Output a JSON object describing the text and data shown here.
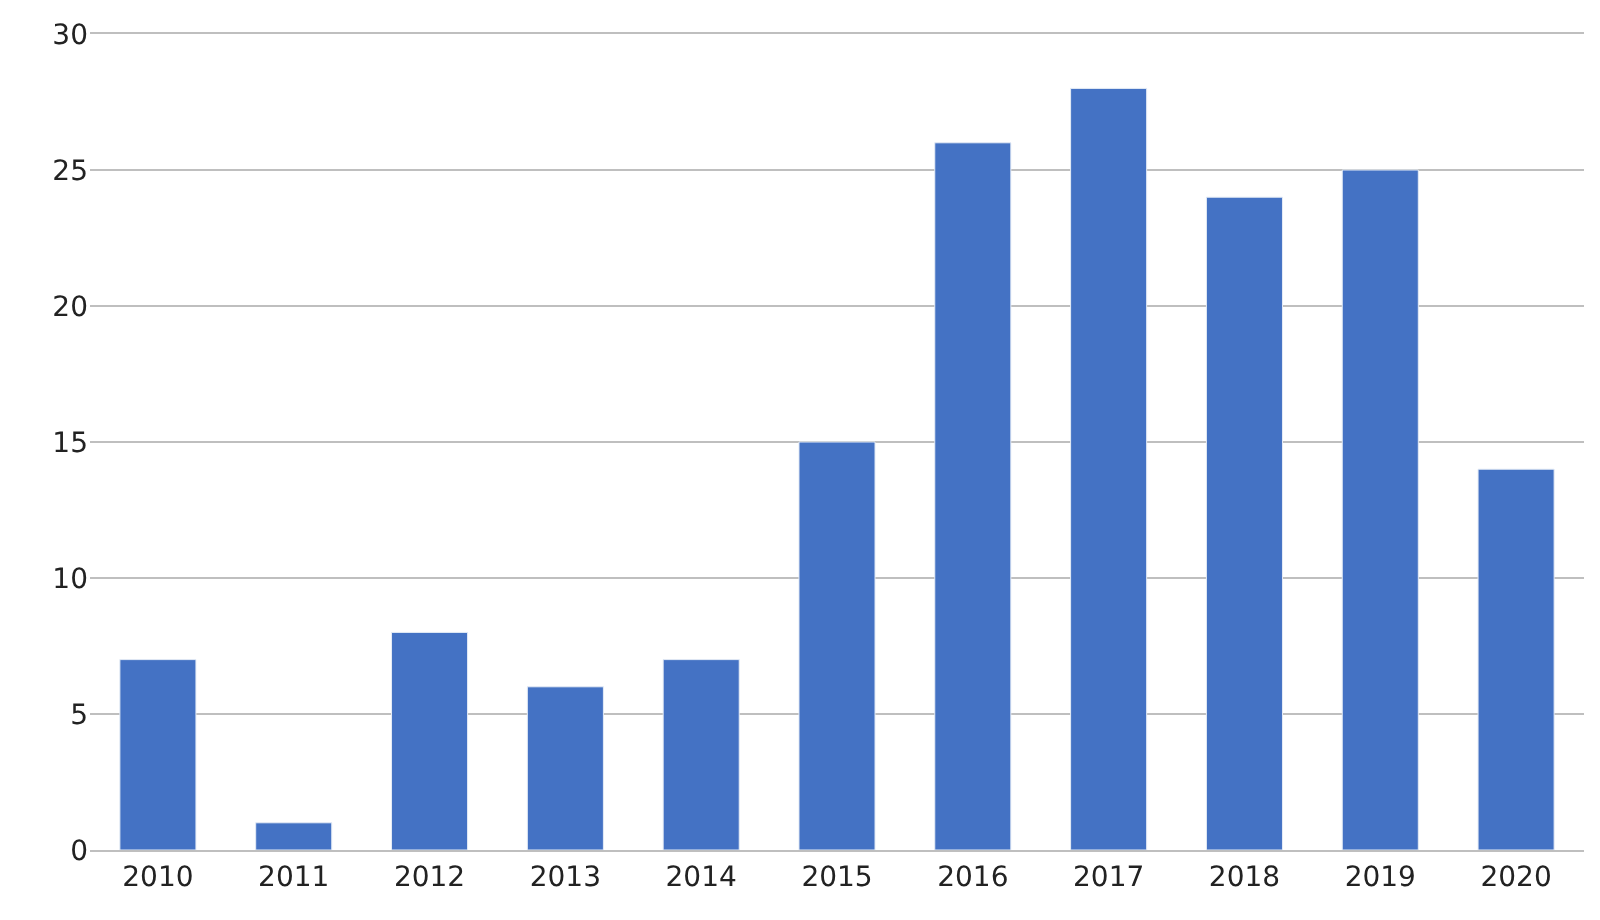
{
  "chart_data": {
    "type": "bar",
    "categories": [
      "2010",
      "2011",
      "2012",
      "2013",
      "2014",
      "2015",
      "2016",
      "2017",
      "2018",
      "2019",
      "2020"
    ],
    "values": [
      7,
      1,
      8,
      6,
      7,
      15,
      26,
      28,
      24,
      25,
      14
    ],
    "color": "#4472c4",
    "ylim": [
      0,
      30
    ],
    "yticks": [
      0,
      5,
      10,
      15,
      20,
      25,
      30
    ],
    "grid": "y"
  }
}
